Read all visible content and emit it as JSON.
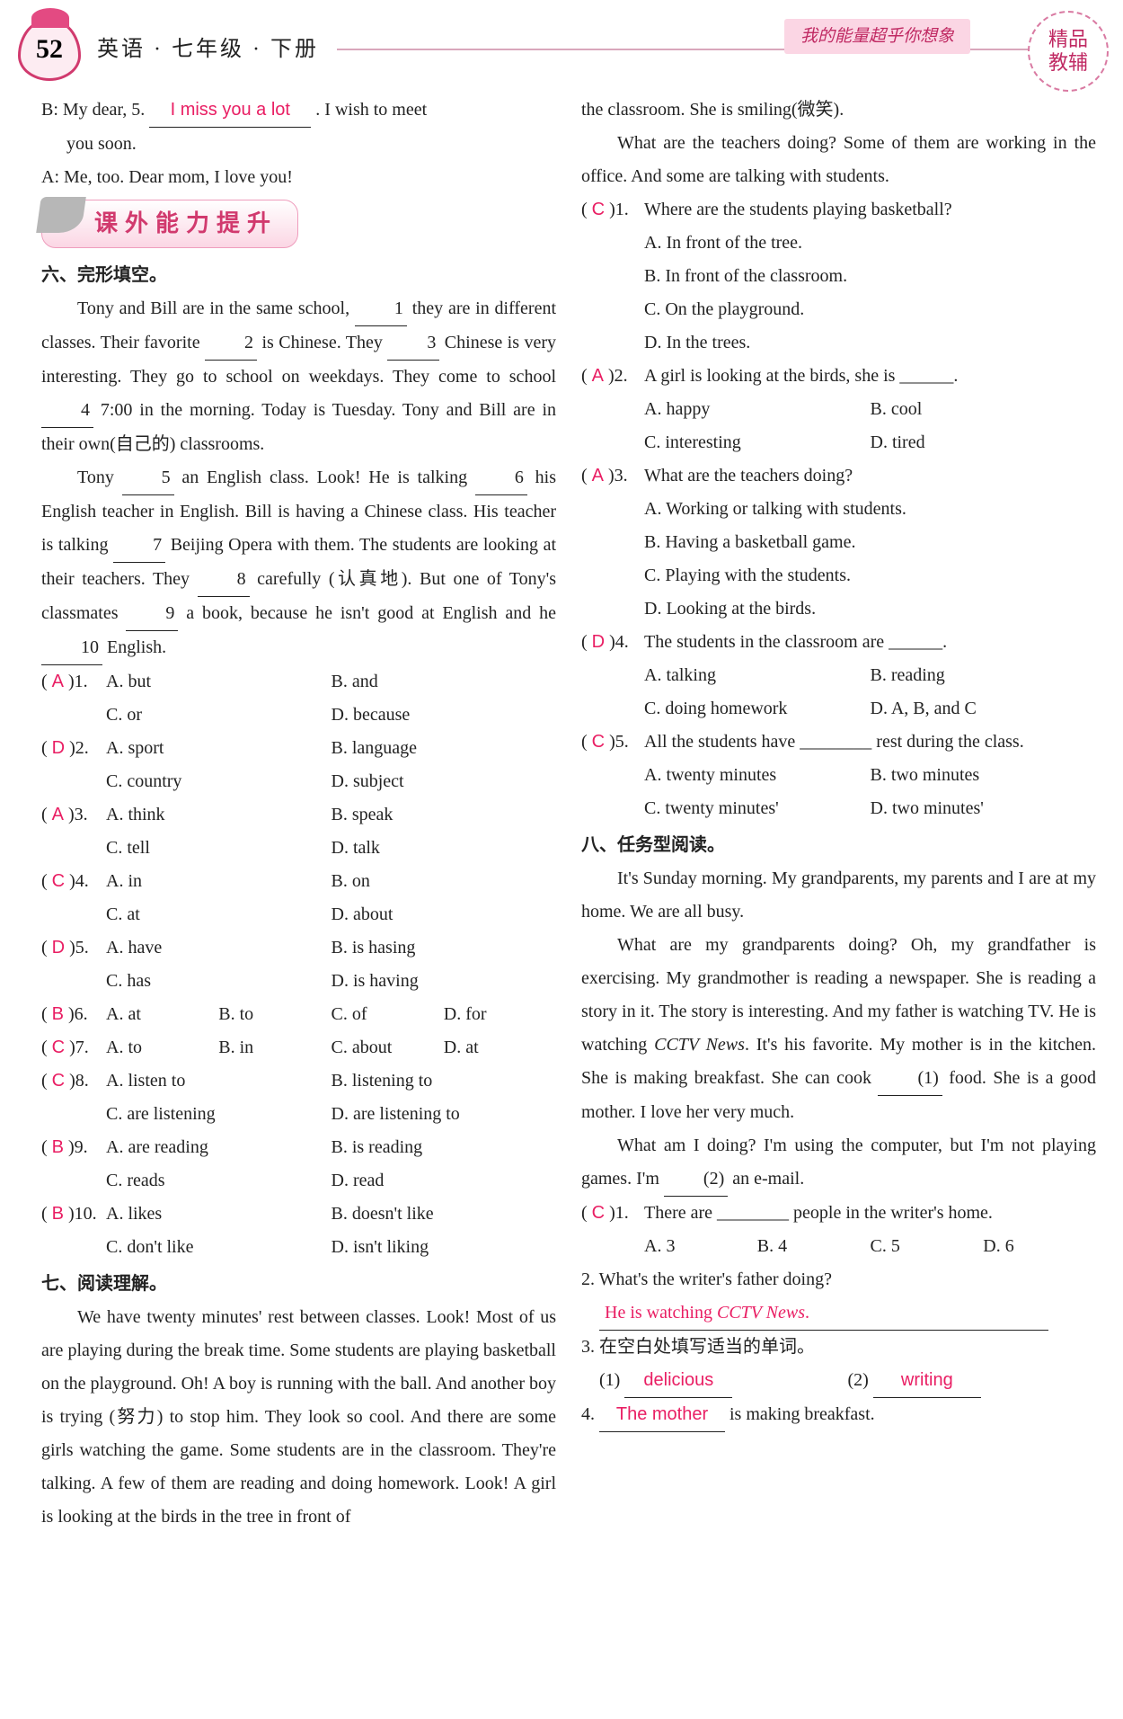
{
  "header": {
    "page_number": "52",
    "subject": "英语 · 七年级 · 下册",
    "slogan": "我的能量超乎你想象",
    "corner_line1": "精品",
    "corner_line2": "教辅"
  },
  "colors": {
    "accent": "#d13a6e",
    "answer": "#e91e63",
    "slogan_bg": "#fbd6e4",
    "text": "#222222"
  },
  "left": {
    "dialog_b_prefix": "B: My dear, 5.",
    "dialog_b_answer": "I miss you a lot",
    "dialog_b_suffix": ". I wish to meet",
    "dialog_b_line2": "you soon.",
    "dialog_a": "A: Me, too. Dear mom, I love you!",
    "section_title": "课外能力提升",
    "s6_title": "六、完形填空。",
    "cloze_p1_a": "Tony and Bill are in the same school, ",
    "cloze_p1_b": " they are in different classes. Their favorite ",
    "cloze_p1_c": " is Chinese. They ",
    "cloze_p1_d": " Chinese is very interesting. They go to school on weekdays. They come to school ",
    "cloze_p1_e": " 7:00 in the morning. Today is Tuesday. Tony and Bill are in their own(自己的) classrooms.",
    "cloze_p2_a": "Tony ",
    "cloze_p2_b": " an English class. Look! He is talking ",
    "cloze_p2_c": " his English teacher in English. Bill is having a Chinese class. His teacher is talking ",
    "cloze_p2_d": " Beijing Opera with them. The students are looking at their teachers. They ",
    "cloze_p2_e": " carefully (认真地). But one of Tony's classmates ",
    "cloze_p2_f": " a book, because he isn't good at English and he ",
    "cloze_p2_g": " English.",
    "cloze_items": [
      {
        "n": "1",
        "ans": "A",
        "opts": [
          "A. but",
          "B. and",
          "C. or",
          "D. because"
        ],
        "cols": 2
      },
      {
        "n": "2",
        "ans": "D",
        "opts": [
          "A. sport",
          "B. language",
          "C. country",
          "D. subject"
        ],
        "cols": 2
      },
      {
        "n": "3",
        "ans": "A",
        "opts": [
          "A. think",
          "B. speak",
          "C. tell",
          "D. talk"
        ],
        "cols": 2
      },
      {
        "n": "4",
        "ans": "C",
        "opts": [
          "A. in",
          "B. on",
          "C. at",
          "D. about"
        ],
        "cols": 2
      },
      {
        "n": "5",
        "ans": "D",
        "opts": [
          "A. have",
          "B. is hasing",
          "C. has",
          "D. is having"
        ],
        "cols": 2
      },
      {
        "n": "6",
        "ans": "B",
        "opts": [
          "A. at",
          "B. to",
          "C. of",
          "D. for"
        ],
        "cols": 4
      },
      {
        "n": "7",
        "ans": "C",
        "opts": [
          "A. to",
          "B. in",
          "C. about",
          "D. at"
        ],
        "cols": 4
      },
      {
        "n": "8",
        "ans": "C",
        "opts": [
          "A. listen to",
          "B. listening to",
          "C. are listening",
          "D. are listening to"
        ],
        "cols": 2
      },
      {
        "n": "9",
        "ans": "B",
        "opts": [
          "A. are reading",
          "B. is reading",
          "C. reads",
          "D. read"
        ],
        "cols": 2
      },
      {
        "n": "10",
        "ans": "B",
        "opts": [
          "A. likes",
          "B. doesn't like",
          "C. don't like",
          "D. isn't liking"
        ],
        "cols": 2
      }
    ],
    "s7_title": "七、阅读理解。",
    "reading7": "We have twenty minutes' rest between classes. Look! Most of us are playing during the break time. Some students are playing basketball on the playground. Oh! A boy is running with the ball. And another boy is trying (努力) to stop him. They look so cool. And there are some girls watching the game. Some students are in the classroom. They're talking. A few of them are reading and doing homework. Look! A girl is looking at the birds in the tree in front of"
  },
  "right": {
    "cont1": "the classroom. She is smiling(微笑).",
    "cont2": "What are the teachers doing? Some of them are working in the office. And some are talking with students.",
    "q7": [
      {
        "n": "1",
        "ans": "C",
        "stem": "Where are the students playing basketball?",
        "opts": [
          "A. In front of the tree.",
          "B. In front of the classroom.",
          "C. On the playground.",
          "D. In the trees."
        ],
        "layout": "col"
      },
      {
        "n": "2",
        "ans": "A",
        "stem": "A girl is looking at the birds, she is ______.",
        "opts": [
          "A. happy",
          "B. cool",
          "C. interesting",
          "D. tired"
        ],
        "layout": "two"
      },
      {
        "n": "3",
        "ans": "A",
        "stem": "What are the teachers doing?",
        "opts": [
          "A. Working or talking with students.",
          "B. Having a basketball game.",
          "C. Playing with the students.",
          "D. Looking at the birds."
        ],
        "layout": "col"
      },
      {
        "n": "4",
        "ans": "D",
        "stem": "The students in the classroom are ______.",
        "opts": [
          "A. talking",
          "B. reading",
          "C. doing homework",
          "D. A, B, and C"
        ],
        "layout": "two"
      },
      {
        "n": "5",
        "ans": "C",
        "stem": "All the students have ________ rest during the class.",
        "opts": [
          "A. twenty minutes",
          "B. two minutes",
          "C. twenty minutes'",
          "D. two minutes'"
        ],
        "layout": "two"
      }
    ],
    "s8_title": "八、任务型阅读。",
    "r8_p1": "It's Sunday morning. My grandparents, my parents and I are at my home. We are all busy.",
    "r8_p2a": "What are my grandparents doing? Oh, my grandfather is exercising. My grandmother is reading a newspaper. She is reading a story in it. The story is interesting. And my father is watching TV. He is watching ",
    "r8_p2_italic": "CCTV News",
    "r8_p2b": ". It's his favorite. My mother is in the kitchen. She is making breakfast. She can cook ",
    "r8_blank1": "(1)",
    "r8_p2c": " food. She is a good mother. I love her very much.",
    "r8_p3a": "What am I doing? I'm using the computer, but I'm not playing games. I'm ",
    "r8_blank2": "(2)",
    "r8_p3b": " an e-mail.",
    "q8_1_ans": "C",
    "q8_1_stem": "There are ________ people in the writer's home.",
    "q8_1_opts": [
      "A. 3",
      "B. 4",
      "C. 5",
      "D. 6"
    ],
    "q8_2_stem": "2. What's the writer's father doing?",
    "q8_2_ans_a": "He is watching ",
    "q8_2_ans_b": "CCTV News",
    "q8_2_ans_c": ".",
    "q8_3_stem": "3. 在空白处填写适当的单词。",
    "q8_3_1_label": "(1)",
    "q8_3_1_ans": "delicious",
    "q8_3_2_label": "(2)",
    "q8_3_2_ans": "writing",
    "q8_4_pre": "4. ",
    "q8_4_ans": "The mother",
    "q8_4_post": " is making breakfast."
  }
}
